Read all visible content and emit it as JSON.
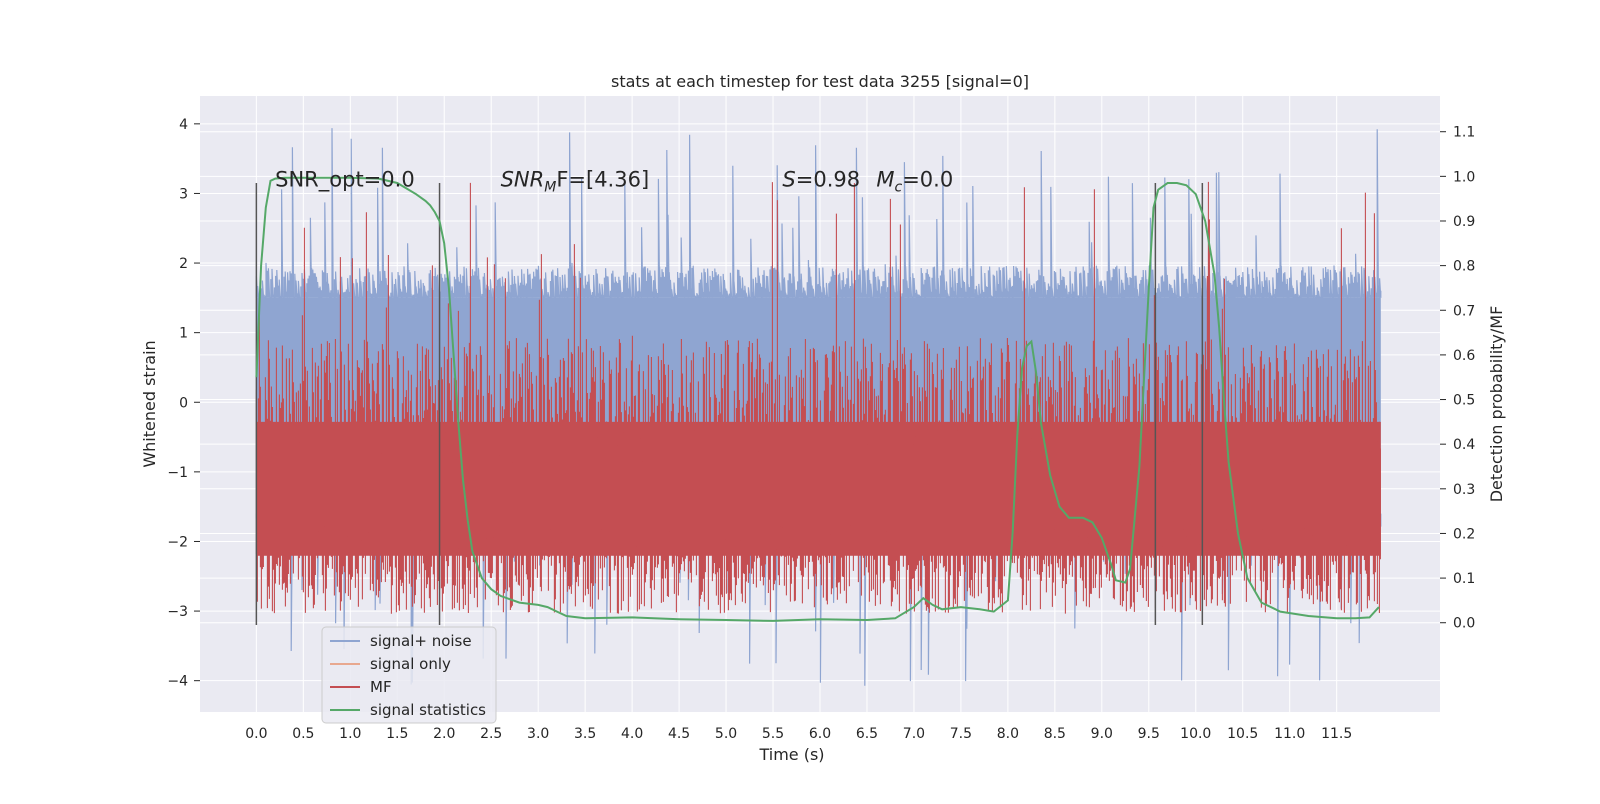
{
  "chart_data": {
    "type": "line",
    "title": "stats at each timestep for test data 3255 [signal=0]",
    "xlabel": "Time (s)",
    "ylabel": "Whitened strain",
    "y2label": "Detection probability/MF",
    "xlim": [
      -0.6,
      12.6
    ],
    "ylim": [
      -4.45,
      4.4
    ],
    "y2lim": [
      -0.2,
      1.18
    ],
    "x_ticks": [
      "0.0",
      "0.5",
      "1.0",
      "1.5",
      "2.0",
      "2.5",
      "3.0",
      "3.5",
      "4.0",
      "4.5",
      "5.0",
      "5.5",
      "6.0",
      "6.5",
      "7.0",
      "7.5",
      "8.0",
      "8.5",
      "9.0",
      "9.5",
      "10.0",
      "10.5",
      "11.0",
      "11.5"
    ],
    "y_ticks": [
      "4",
      "3",
      "2",
      "1",
      "0",
      "−1",
      "−2",
      "−3",
      "−4"
    ],
    "y2_ticks": [
      "1.1",
      "1.0",
      "0.9",
      "0.8",
      "0.7",
      "0.6",
      "0.5",
      "0.4",
      "0.3",
      "0.2",
      "0.1",
      "0.0"
    ],
    "grid": true,
    "legend_position": "lower-left",
    "annotations": [
      {
        "text": "SNR_opt=0.0",
        "x": 0.2
      },
      {
        "text": "SNR",
        "sub": "M",
        "after": "F=[4.36]",
        "x": 2.6
      },
      {
        "text": "S=0.98",
        "x": 5.6
      },
      {
        "text": "M",
        "sub": "c",
        "after": "=0.0",
        "x": 6.6
      }
    ],
    "annotation_y": 3.1,
    "vertical_markers": [
      0.0,
      1.95,
      9.57,
      10.07
    ],
    "marker_ylim": [
      -3.2,
      3.15
    ],
    "series": [
      {
        "name": "signal+ noise",
        "color": "#8fa5d1",
        "kind": "noise",
        "x_range": [
          0.0,
          11.97
        ],
        "lower_band": [
          -2.0,
          -1.6
        ],
        "upper_band": [
          1.5,
          2.0
        ],
        "peak_max": 4.0,
        "peak_min": -4.1
      },
      {
        "name": "signal only",
        "color": "#e8a88f",
        "values": []
      },
      {
        "name": "MF",
        "color": "#c44e52",
        "kind": "band",
        "x_range": [
          0.0,
          11.97
        ],
        "y_range": [
          0.02,
          0.74
        ],
        "spike_max": 1.0
      },
      {
        "name": "signal statistics",
        "color": "#55a868",
        "axis": "right",
        "x": [
          0.0,
          0.05,
          0.1,
          0.15,
          0.2,
          0.3,
          0.5,
          0.8,
          1.0,
          1.3,
          1.5,
          1.7,
          1.8,
          1.85,
          1.9,
          1.95,
          2.0,
          2.05,
          2.1,
          2.15,
          2.2,
          2.25,
          2.3,
          2.4,
          2.5,
          2.6,
          2.8,
          3.0,
          3.1,
          3.2,
          3.3,
          3.5,
          4.0,
          4.5,
          5.0,
          5.5,
          6.0,
          6.5,
          6.8,
          7.0,
          7.1,
          7.2,
          7.3,
          7.5,
          7.7,
          7.85,
          8.0,
          8.05,
          8.1,
          8.15,
          8.2,
          8.25,
          8.3,
          8.35,
          8.45,
          8.55,
          8.65,
          8.8,
          8.9,
          9.0,
          9.1,
          9.15,
          9.25,
          9.3,
          9.4,
          9.5,
          9.55,
          9.6,
          9.7,
          9.8,
          9.9,
          10.0,
          10.1,
          10.2,
          10.25,
          10.3,
          10.35,
          10.45,
          10.55,
          10.7,
          10.9,
          11.2,
          11.5,
          11.7,
          11.85,
          11.95
        ],
        "values": [
          0.55,
          0.8,
          0.93,
          0.99,
          0.995,
          0.997,
          0.997,
          0.997,
          0.997,
          0.995,
          0.985,
          0.96,
          0.945,
          0.935,
          0.92,
          0.9,
          0.85,
          0.75,
          0.6,
          0.45,
          0.32,
          0.23,
          0.16,
          0.1,
          0.075,
          0.06,
          0.045,
          0.04,
          0.035,
          0.025,
          0.015,
          0.01,
          0.012,
          0.008,
          0.006,
          0.004,
          0.008,
          0.006,
          0.01,
          0.035,
          0.055,
          0.04,
          0.03,
          0.035,
          0.03,
          0.025,
          0.05,
          0.2,
          0.42,
          0.57,
          0.62,
          0.63,
          0.56,
          0.45,
          0.33,
          0.26,
          0.235,
          0.235,
          0.225,
          0.19,
          0.13,
          0.095,
          0.09,
          0.12,
          0.35,
          0.75,
          0.93,
          0.97,
          0.985,
          0.985,
          0.98,
          0.96,
          0.9,
          0.78,
          0.66,
          0.5,
          0.36,
          0.2,
          0.1,
          0.045,
          0.025,
          0.015,
          0.01,
          0.01,
          0.012,
          0.035
        ]
      }
    ]
  }
}
